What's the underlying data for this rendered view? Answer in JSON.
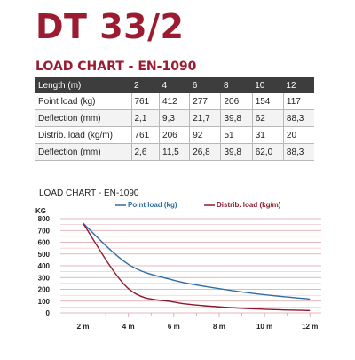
{
  "title": "DT 33/2",
  "table_title": "LOAD CHART - EN-1090",
  "table": {
    "header": [
      "Length (m)",
      "2",
      "4",
      "6",
      "8",
      "10",
      "12"
    ],
    "rows": [
      [
        "Point load (kg)",
        "761",
        "412",
        "277",
        "206",
        "154",
        "117"
      ],
      [
        "Deflection (mm)",
        "2,1",
        "9,3",
        "21,7",
        "39,8",
        "62",
        "88,3"
      ],
      [
        "Distrib. load (kg/m)",
        "761",
        "206",
        "92",
        "51",
        "31",
        "20"
      ],
      [
        "Deflection (mm)",
        "2,6",
        "11,5",
        "26,8",
        "39,8",
        "62,0",
        "88,3"
      ]
    ]
  },
  "colors": {
    "brand": "#9b1b30",
    "point_series": "#2e6ea6",
    "distrib_series": "#8b1a2e",
    "grid": "#d9a0a8"
  },
  "chart_data": {
    "type": "line",
    "title": "LOAD CHART - EN-1090",
    "ylabel": "KG",
    "xlabel": "",
    "x": [
      2,
      4,
      6,
      8,
      10,
      12
    ],
    "x_tick_labels": [
      "2 m",
      "4 m",
      "6 m",
      "8 m",
      "10 m",
      "12 m"
    ],
    "y_ticks": [
      0,
      100,
      200,
      300,
      400,
      500,
      600,
      700,
      800
    ],
    "xlim": [
      1,
      12.5
    ],
    "ylim": [
      0,
      800
    ],
    "grid": true,
    "legend_placement": "top",
    "series": [
      {
        "name": "Point load (kg)",
        "color": "#2e6ea6",
        "values": [
          761,
          412,
          277,
          206,
          154,
          117
        ]
      },
      {
        "name": "Distrib. load (kg/m)",
        "color": "#8b1a2e",
        "values": [
          761,
          206,
          92,
          51,
          31,
          20
        ]
      }
    ]
  }
}
